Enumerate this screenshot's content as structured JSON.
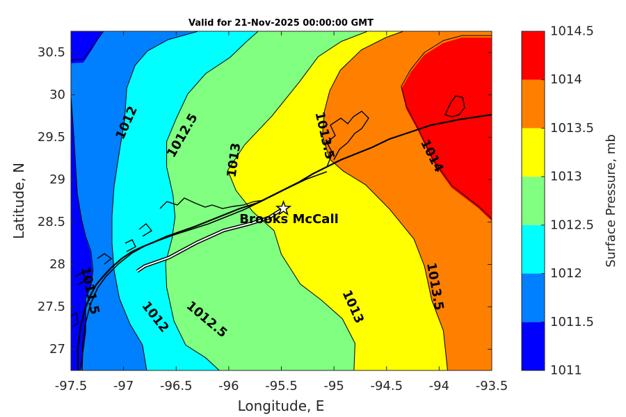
{
  "chart_data": {
    "type": "contourf",
    "title": "Valid for 21-Nov-2025 00:00:00 GMT",
    "xlabel": "Longitude, E",
    "ylabel": "Latitude, N",
    "xlim": [
      -97.5,
      -93.5
    ],
    "ylim": [
      26.75,
      30.75
    ],
    "x_ticks": [
      "-97.5",
      "-97",
      "-96.5",
      "-96",
      "-95.5",
      "-95",
      "-94.5",
      "-94",
      "-93.5"
    ],
    "y_ticks": [
      "27",
      "27.5",
      "28",
      "28.5",
      "29",
      "29.5",
      "30",
      "30.5"
    ],
    "x_tick_values": [
      -97.5,
      -97,
      -96.5,
      -96,
      -95.5,
      -95,
      -94.5,
      -94,
      -93.5
    ],
    "y_tick_values": [
      27,
      27.5,
      28,
      28.5,
      29,
      29.5,
      30,
      30.5
    ],
    "grid": false,
    "colorbar": {
      "label": "Surface Pressure, mb",
      "levels": [
        1011,
        1011.5,
        1012,
        1012.5,
        1013,
        1013.5,
        1014,
        1014.5
      ],
      "tick_labels": [
        "1011",
        "1011.5",
        "1012",
        "1012.5",
        "1013",
        "1013.5",
        "1014",
        "1014.5"
      ],
      "colors": [
        "#0000ff",
        "#0080ff",
        "#00ffff",
        "#80ff80",
        "#ffff00",
        "#ff8000",
        "#ff0000",
        "#800000"
      ]
    },
    "contour_levels": [
      1011.5,
      1012,
      1012.5,
      1013,
      1013.5,
      1014
    ],
    "contour_lines": [
      {
        "level": 1011.5,
        "points": [
          [
            -97.5,
            30.41
          ],
          [
            -97.38,
            30.42
          ],
          [
            -97.29,
            30.58
          ],
          [
            -97.19,
            30.75
          ]
        ]
      },
      {
        "level": 1011.5,
        "points": [
          [
            -97.41,
            26.75
          ],
          [
            -97.36,
            27.2
          ],
          [
            -97.36,
            27.6
          ],
          [
            -97.31,
            27.74
          ],
          [
            -97.29,
            27.93
          ],
          [
            -97.31,
            28.16
          ],
          [
            -97.36,
            28.33
          ],
          [
            -97.4,
            28.54
          ],
          [
            -97.44,
            28.84
          ],
          [
            -97.46,
            29.25
          ],
          [
            -97.48,
            29.65
          ],
          [
            -97.5,
            29.99
          ]
        ]
      },
      {
        "level": 1012,
        "points": [
          [
            -96.78,
            26.75
          ],
          [
            -96.82,
            27.05
          ],
          [
            -96.94,
            27.3
          ],
          [
            -97.04,
            27.6
          ],
          [
            -97.09,
            27.93
          ],
          [
            -97.11,
            28.25
          ],
          [
            -97.11,
            28.57
          ],
          [
            -97.09,
            28.92
          ],
          [
            -97.04,
            29.33
          ],
          [
            -96.99,
            29.7
          ],
          [
            -96.97,
            30.08
          ],
          [
            -96.89,
            30.35
          ],
          [
            -96.77,
            30.52
          ],
          [
            -96.58,
            30.65
          ],
          [
            -96.29,
            30.75
          ]
        ]
      },
      {
        "level": 1012.5,
        "points": [
          [
            -96.09,
            26.75
          ],
          [
            -96.22,
            26.9
          ],
          [
            -96.41,
            27.05
          ],
          [
            -96.52,
            27.33
          ],
          [
            -96.59,
            27.73
          ],
          [
            -96.6,
            28.02
          ],
          [
            -96.54,
            28.3
          ],
          [
            -96.51,
            28.56
          ],
          [
            -96.53,
            28.82
          ],
          [
            -96.59,
            29.15
          ],
          [
            -96.59,
            29.45
          ],
          [
            -96.5,
            29.72
          ],
          [
            -96.39,
            30.01
          ],
          [
            -96.22,
            30.25
          ],
          [
            -95.99,
            30.44
          ],
          [
            -95.83,
            30.63
          ],
          [
            -95.72,
            30.75
          ]
        ]
      },
      {
        "level": 1013,
        "points": [
          [
            -94.81,
            26.75
          ],
          [
            -94.8,
            27.07
          ],
          [
            -94.92,
            27.36
          ],
          [
            -95.12,
            27.58
          ],
          [
            -95.32,
            27.77
          ],
          [
            -95.5,
            28.12
          ],
          [
            -95.57,
            28.4
          ],
          [
            -95.77,
            28.62
          ],
          [
            -95.93,
            28.87
          ],
          [
            -96.01,
            29.11
          ],
          [
            -95.85,
            29.41
          ],
          [
            -95.59,
            29.75
          ],
          [
            -95.33,
            30.15
          ],
          [
            -95.15,
            30.45
          ],
          [
            -94.93,
            30.63
          ],
          [
            -94.68,
            30.75
          ]
        ]
      },
      {
        "level": 1013.5,
        "points": [
          [
            -93.92,
            26.75
          ],
          [
            -93.96,
            27.22
          ],
          [
            -94.07,
            27.58
          ],
          [
            -94.14,
            27.98
          ],
          [
            -94.24,
            28.3
          ],
          [
            -94.47,
            28.65
          ],
          [
            -94.7,
            28.94
          ],
          [
            -94.91,
            29.1
          ],
          [
            -95.04,
            29.24
          ],
          [
            -95.11,
            29.52
          ],
          [
            -95.09,
            29.81
          ],
          [
            -95.04,
            30.05
          ],
          [
            -94.94,
            30.29
          ],
          [
            -94.74,
            30.53
          ],
          [
            -94.5,
            30.68
          ],
          [
            -94.34,
            30.75
          ]
        ]
      },
      {
        "level": 1014,
        "points": [
          [
            -93.5,
            28.54
          ],
          [
            -93.63,
            28.69
          ],
          [
            -93.88,
            28.93
          ],
          [
            -94.06,
            29.24
          ],
          [
            -94.2,
            29.6
          ],
          [
            -94.31,
            29.86
          ],
          [
            -94.36,
            30.1
          ],
          [
            -94.27,
            30.3
          ],
          [
            -94.14,
            30.5
          ],
          [
            -93.96,
            30.64
          ],
          [
            -93.78,
            30.7
          ],
          [
            -93.5,
            30.7
          ]
        ]
      }
    ],
    "contour_labels": [
      {
        "text": "1012",
        "lon": -96.97,
        "lat": 29.67,
        "angle": -66
      },
      {
        "text": "1012.5",
        "lon": -96.44,
        "lat": 29.52,
        "angle": -60
      },
      {
        "text": "1013",
        "lon": -95.95,
        "lat": 29.23,
        "angle": -82
      },
      {
        "text": "1013.5",
        "lon": -95.09,
        "lat": 29.52,
        "angle": 77
      },
      {
        "text": "1014",
        "lon": -94.07,
        "lat": 29.28,
        "angle": 63
      },
      {
        "text": "1013.5",
        "lon": -94.04,
        "lat": 27.74,
        "angle": 80
      },
      {
        "text": "1013",
        "lon": -94.82,
        "lat": 27.5,
        "angle": 66
      },
      {
        "text": "1012.5",
        "lon": -96.21,
        "lat": 27.35,
        "angle": 40
      },
      {
        "text": "1012",
        "lon": -96.7,
        "lat": 27.38,
        "angle": 52
      },
      {
        "text": "1011.5",
        "lon": -97.32,
        "lat": 27.69,
        "angle": 78
      }
    ],
    "station": {
      "name": "Brooks McCall",
      "lon": -95.48,
      "lat": 28.66
    },
    "track": [
      [
        -95.48,
        28.66
      ],
      [
        -95.62,
        28.55
      ],
      [
        -95.8,
        28.48
      ],
      [
        -96.05,
        28.4
      ],
      [
        -96.3,
        28.26
      ],
      [
        -96.57,
        28.08
      ],
      [
        -96.8,
        27.98
      ],
      [
        -96.87,
        27.92
      ]
    ]
  }
}
